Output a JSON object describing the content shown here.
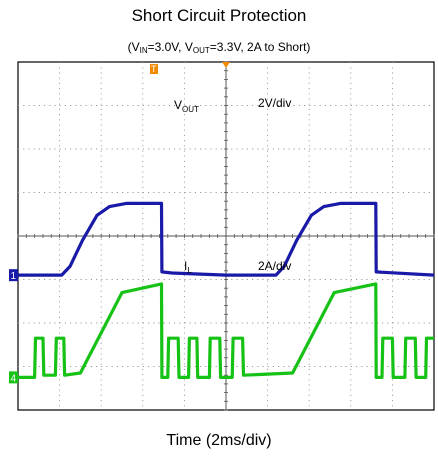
{
  "chart_data": {
    "type": "line",
    "title": "Short Circuit Protection",
    "subtitle": {
      "vin_label": "V",
      "vin_sub": "IN",
      "vin_value": "=3.0V, ",
      "vout_label": "V",
      "vout_sub": "OUT",
      "vout_value": "=3.3V, 2A to Short)",
      "prefix": "("
    },
    "xlabel": "Time (2ms/div)",
    "x_units": "div",
    "xlim": [
      0,
      10
    ],
    "grid": true,
    "divisions": {
      "x": 10,
      "y": 8
    },
    "annotations": [
      {
        "label": "V",
        "sub": "OUT",
        "scale": "2V/div"
      },
      {
        "label": "I",
        "sub": "L",
        "scale": "2A/div"
      }
    ],
    "series": [
      {
        "name": "VOUT",
        "color": "#1a1aa8",
        "ylim": [
          -6.2,
          9.8
        ],
        "points": [
          [
            0,
            0
          ],
          [
            1.05,
            0
          ],
          [
            1.25,
            0.4
          ],
          [
            1.55,
            1.6
          ],
          [
            1.9,
            2.75
          ],
          [
            2.2,
            3.15
          ],
          [
            2.6,
            3.3
          ],
          [
            3.45,
            3.3
          ],
          [
            3.46,
            0.15
          ],
          [
            3.7,
            0.1
          ],
          [
            5.0,
            0
          ],
          [
            6.2,
            0
          ],
          [
            6.4,
            0.4
          ],
          [
            6.7,
            1.6
          ],
          [
            7.05,
            2.75
          ],
          [
            7.35,
            3.15
          ],
          [
            7.75,
            3.3
          ],
          [
            8.6,
            3.3
          ],
          [
            8.61,
            0.15
          ],
          [
            10,
            0
          ]
        ]
      },
      {
        "name": "IL",
        "color": "#16c216",
        "ylim": [
          -0.75,
          7.25
        ],
        "points": [
          [
            0,
            0
          ],
          [
            0.4,
            0
          ],
          [
            0.42,
            0.9
          ],
          [
            0.6,
            0.9
          ],
          [
            0.62,
            0.05
          ],
          [
            0.9,
            0.05
          ],
          [
            0.92,
            0.9
          ],
          [
            1.1,
            0.9
          ],
          [
            1.12,
            0.05
          ],
          [
            1.5,
            0.1
          ],
          [
            2.5,
            1.95
          ],
          [
            3.45,
            2.15
          ],
          [
            3.46,
            0
          ],
          [
            3.6,
            0
          ],
          [
            3.62,
            0.9
          ],
          [
            3.85,
            0.9
          ],
          [
            3.87,
            0
          ],
          [
            4.1,
            0
          ],
          [
            4.12,
            0.9
          ],
          [
            4.3,
            0.9
          ],
          [
            4.32,
            0
          ],
          [
            4.6,
            0
          ],
          [
            4.62,
            0.9
          ],
          [
            4.85,
            0.9
          ],
          [
            4.87,
            0
          ],
          [
            5.15,
            0
          ],
          [
            5.17,
            0.9
          ],
          [
            5.4,
            0.9
          ],
          [
            5.42,
            0.05
          ],
          [
            6.6,
            0.1
          ],
          [
            7.6,
            1.95
          ],
          [
            8.6,
            2.15
          ],
          [
            8.61,
            0
          ],
          [
            8.75,
            0
          ],
          [
            8.77,
            0.9
          ],
          [
            9.0,
            0.9
          ],
          [
            9.02,
            0
          ],
          [
            9.3,
            0
          ],
          [
            9.32,
            0.9
          ],
          [
            9.55,
            0.9
          ],
          [
            9.57,
            0
          ],
          [
            9.8,
            0
          ],
          [
            9.82,
            0.9
          ],
          [
            10,
            0.9
          ]
        ]
      }
    ],
    "markers": {
      "vout_ref": "1",
      "il_ref": "4",
      "trigger": "T"
    },
    "grid_color": "#9a9a9a",
    "frame_color": "#000000"
  }
}
